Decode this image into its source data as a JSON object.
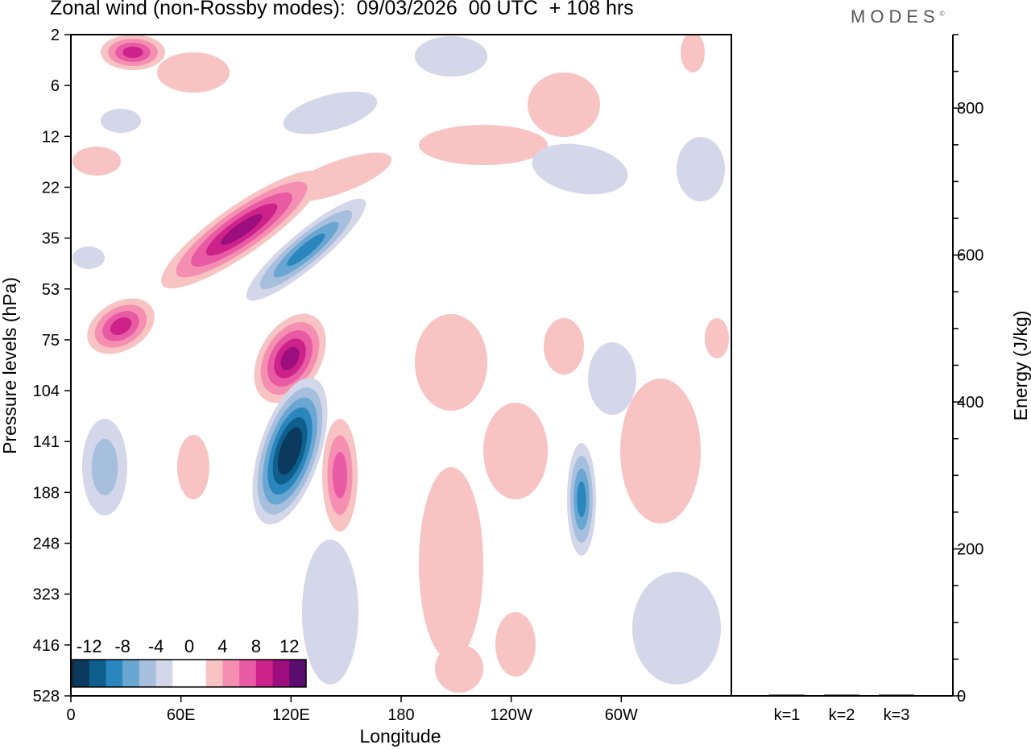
{
  "header": {
    "title": "Zonal wind (non-Rossby modes):  09/03/2026  00 UTC  + 108 hrs",
    "logo": "MODES",
    "logo_mark": "©"
  },
  "chart_data": [
    {
      "type": "heatmap",
      "title": "Zonal wind (non-Rossby modes):  09/03/2026  00 UTC  + 108 hrs",
      "xlabel": "Longitude",
      "ylabel": "Pressure levels (hPa)",
      "x_ticks": [
        "0",
        "60E",
        "120E",
        "180",
        "120W",
        "60W"
      ],
      "y_ticks": [
        "2",
        "6",
        "12",
        "22",
        "35",
        "53",
        "75",
        "104",
        "141",
        "188",
        "248",
        "323",
        "416",
        "528"
      ],
      "colorbar": {
        "labels": [
          "-12",
          "-8",
          "-4",
          "0",
          "4",
          "8",
          "12"
        ],
        "colors": [
          "#0c3a5e",
          "#0f5f8c",
          "#2b86be",
          "#6aa6d2",
          "#a6bfdd",
          "#d4d6e9",
          "#ffffff",
          "#ffffff",
          "#f7c3c3",
          "#f58fb2",
          "#e85aa3",
          "#cc2289",
          "#9c0e7d",
          "#5a0d6e"
        ]
      },
      "features": [
        {
          "name": "tilted-positive-band-upper",
          "sign": "positive",
          "peak": 10
        },
        {
          "name": "tilted-negative-band-upper",
          "sign": "negative",
          "peak": -8
        },
        {
          "name": "positive-core-near-120E",
          "sign": "positive",
          "peak": 10
        },
        {
          "name": "negative-core-near-120E",
          "sign": "negative",
          "peak": -14
        },
        {
          "name": "positive-cell-near-140E",
          "sign": "positive",
          "peak": 7
        },
        {
          "name": "negative-cell-near-80W",
          "sign": "negative",
          "peak": -8
        },
        {
          "name": "negative-cell-near-20E",
          "sign": "negative",
          "peak": -5
        },
        {
          "name": "positive-cell-near-30E-75hPa",
          "sign": "positive",
          "peak": 8
        },
        {
          "name": "positive-cell-near-30E-2hPa",
          "sign": "positive",
          "peak": 8
        }
      ]
    },
    {
      "type": "bar",
      "ylabel": "Energy (J/kg)",
      "categories": [
        "k=1",
        "k=2",
        "k=3"
      ],
      "values": [
        1,
        1,
        1
      ],
      "ylim": [
        0,
        900
      ],
      "y_ticks": [
        "0",
        "200",
        "400",
        "600",
        "800"
      ]
    }
  ]
}
